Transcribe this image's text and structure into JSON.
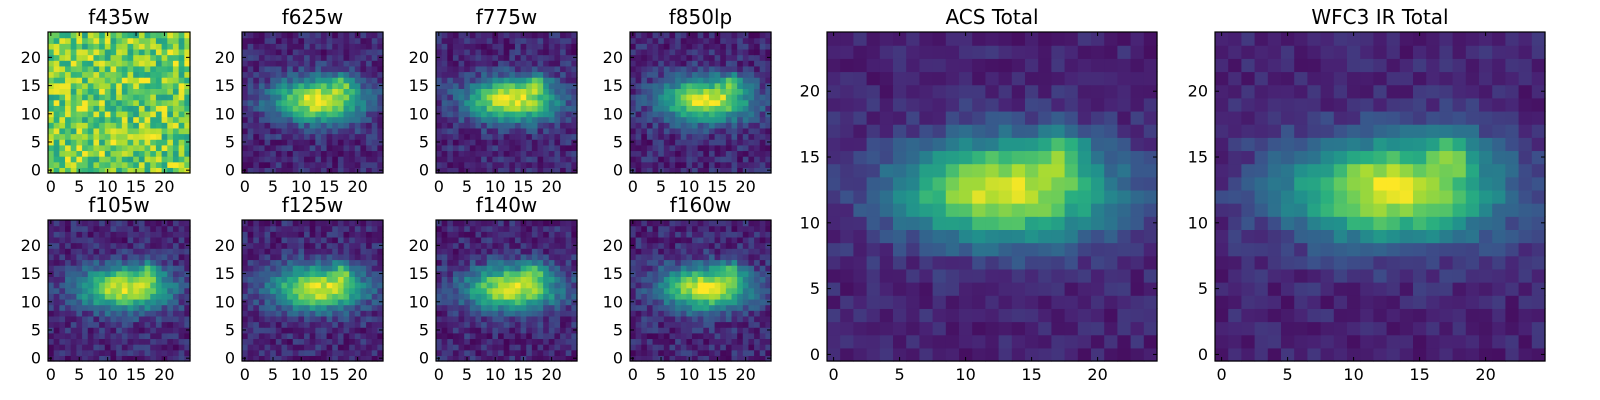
{
  "figure": {
    "background": "#ffffff"
  },
  "chart_data": [
    {
      "type": "heatmap",
      "title": "f435w",
      "grid_size": 25,
      "xlim": [
        0,
        24
      ],
      "ylim": [
        0,
        24
      ],
      "x_ticks": [
        0,
        5,
        10,
        15,
        20
      ],
      "y_ticks": [
        0,
        5,
        10,
        15,
        20
      ],
      "colormap": "viridis",
      "pattern": "noise"
    },
    {
      "type": "heatmap",
      "title": "f625w",
      "grid_size": 25,
      "xlim": [
        0,
        24
      ],
      "ylim": [
        0,
        24
      ],
      "x_ticks": [
        0,
        5,
        10,
        15,
        20
      ],
      "y_ticks": [
        0,
        5,
        10,
        15,
        20
      ],
      "colormap": "viridis",
      "pattern": "galaxy"
    },
    {
      "type": "heatmap",
      "title": "f775w",
      "grid_size": 25,
      "xlim": [
        0,
        24
      ],
      "ylim": [
        0,
        24
      ],
      "x_ticks": [
        0,
        5,
        10,
        15,
        20
      ],
      "y_ticks": [
        0,
        5,
        10,
        15,
        20
      ],
      "colormap": "viridis",
      "pattern": "galaxy"
    },
    {
      "type": "heatmap",
      "title": "f850lp",
      "grid_size": 25,
      "xlim": [
        0,
        24
      ],
      "ylim": [
        0,
        24
      ],
      "x_ticks": [
        0,
        5,
        10,
        15,
        20
      ],
      "y_ticks": [
        0,
        5,
        10,
        15,
        20
      ],
      "colormap": "viridis",
      "pattern": "galaxy"
    },
    {
      "type": "heatmap",
      "title": "f105w",
      "grid_size": 25,
      "xlim": [
        0,
        24
      ],
      "ylim": [
        0,
        24
      ],
      "x_ticks": [
        0,
        5,
        10,
        15,
        20
      ],
      "y_ticks": [
        0,
        5,
        10,
        15,
        20
      ],
      "colormap": "viridis",
      "pattern": "galaxy"
    },
    {
      "type": "heatmap",
      "title": "f125w",
      "grid_size": 25,
      "xlim": [
        0,
        24
      ],
      "ylim": [
        0,
        24
      ],
      "x_ticks": [
        0,
        5,
        10,
        15,
        20
      ],
      "y_ticks": [
        0,
        5,
        10,
        15,
        20
      ],
      "colormap": "viridis",
      "pattern": "galaxy"
    },
    {
      "type": "heatmap",
      "title": "f140w",
      "grid_size": 25,
      "xlim": [
        0,
        24
      ],
      "ylim": [
        0,
        24
      ],
      "x_ticks": [
        0,
        5,
        10,
        15,
        20
      ],
      "y_ticks": [
        0,
        5,
        10,
        15,
        20
      ],
      "colormap": "viridis",
      "pattern": "galaxy"
    },
    {
      "type": "heatmap",
      "title": "f160w",
      "grid_size": 25,
      "xlim": [
        0,
        24
      ],
      "ylim": [
        0,
        24
      ],
      "x_ticks": [
        0,
        5,
        10,
        15,
        20
      ],
      "y_ticks": [
        0,
        5,
        10,
        15,
        20
      ],
      "colormap": "viridis",
      "pattern": "galaxy"
    },
    {
      "type": "heatmap",
      "title": "ACS Total",
      "grid_size": 25,
      "xlim": [
        0,
        24
      ],
      "ylim": [
        0,
        24
      ],
      "x_ticks": [
        0,
        5,
        10,
        15,
        20
      ],
      "y_ticks": [
        0,
        5,
        10,
        15,
        20
      ],
      "colormap": "viridis",
      "pattern": "galaxy"
    },
    {
      "type": "heatmap",
      "title": "WFC3 IR Total",
      "grid_size": 25,
      "xlim": [
        0,
        24
      ],
      "ylim": [
        0,
        24
      ],
      "x_ticks": [
        0,
        5,
        10,
        15,
        20
      ],
      "y_ticks": [
        0,
        5,
        10,
        15,
        20
      ],
      "colormap": "viridis",
      "pattern": "galaxy"
    }
  ]
}
